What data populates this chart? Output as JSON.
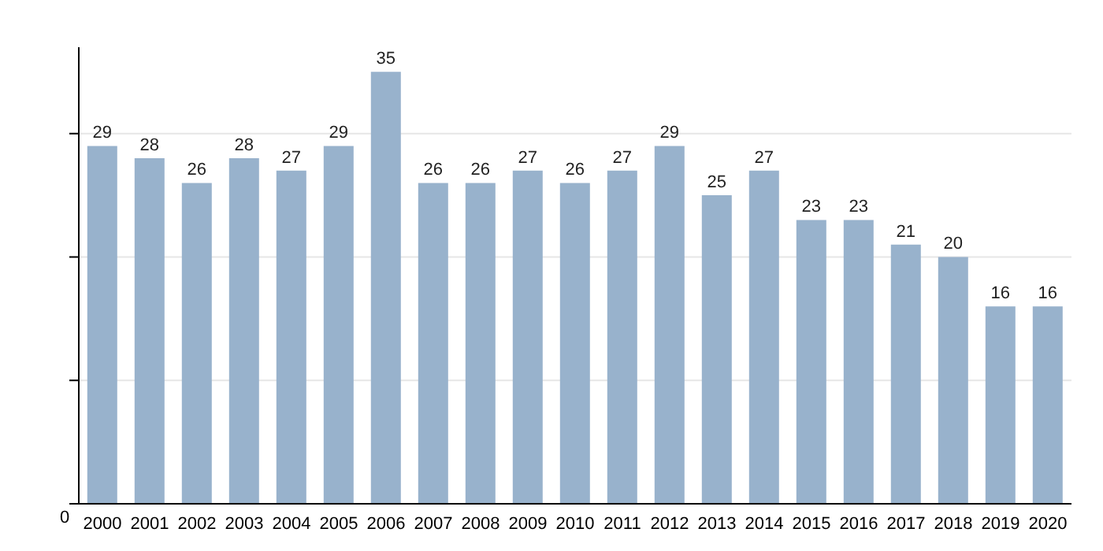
{
  "chart_data": {
    "type": "bar",
    "categories": [
      "2000",
      "2001",
      "2002",
      "2003",
      "2004",
      "2005",
      "2006",
      "2007",
      "2008",
      "2009",
      "2010",
      "2011",
      "2012",
      "2013",
      "2014",
      "2015",
      "2016",
      "2017",
      "2018",
      "2019",
      "2020"
    ],
    "values": [
      29,
      28,
      26,
      28,
      27,
      29,
      35,
      26,
      26,
      27,
      26,
      27,
      29,
      25,
      27,
      23,
      23,
      21,
      20,
      16,
      16
    ],
    "color": "#98b2cc",
    "ylim": [
      0,
      37
    ],
    "yticks": [
      {
        "value": 0,
        "label": null
      },
      {
        "value": 10,
        "label": null
      },
      {
        "value": 20,
        "label": null
      },
      {
        "value": 30,
        "label": null
      }
    ],
    "grid": "y",
    "annotations": [
      "0"
    ],
    "data_labels": true
  }
}
